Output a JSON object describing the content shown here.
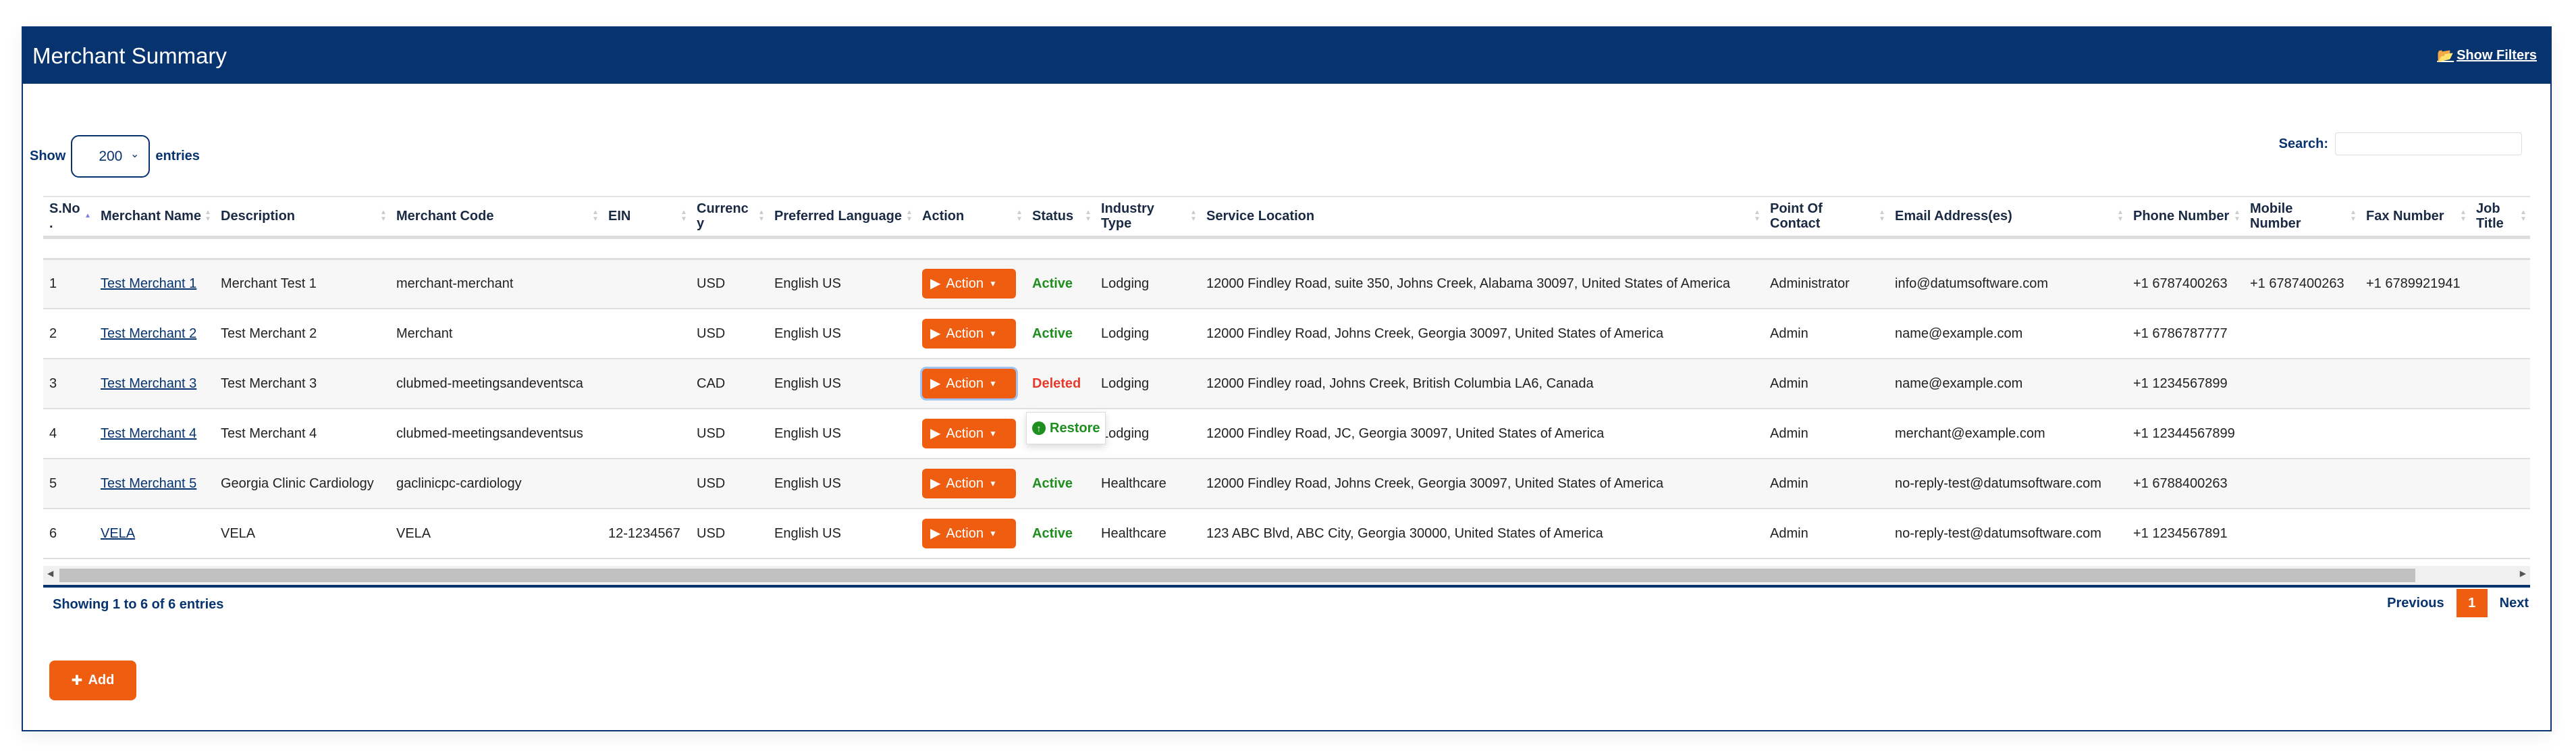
{
  "header": {
    "title": "Merchant Summary",
    "show_filters": "Show Filters",
    "filter_icon": "folder-open-icon"
  },
  "length": {
    "show": "Show",
    "value": "200",
    "entries": "entries"
  },
  "search": {
    "label": "Search:",
    "value": ""
  },
  "columns": [
    "S.No.",
    "Merchant Name",
    "Description",
    "Merchant Code",
    "EIN",
    "Currency",
    "Preferred Language",
    "Action",
    "Status",
    "Industry Type",
    "Service Location",
    "Point Of Contact",
    "Email Address(es)",
    "Phone Number",
    "Mobile Number",
    "Fax Number",
    "Job Title"
  ],
  "rows": [
    {
      "sno": "1",
      "name": "Test Merchant 1",
      "desc": "Merchant Test 1",
      "code": "merchant-merchant",
      "ein": "",
      "cur": "USD",
      "lang": "English US",
      "action": "Action",
      "status": "Active",
      "industry": "Lodging",
      "location": "12000 Findley Road, suite 350, Johns Creek, Alabama 30097, United States of America",
      "poc": "Administrator",
      "email": "info@datumsoftware.com",
      "phone": "+1 6787400263",
      "mobile": "+1 6787400263",
      "fax": "+1 6789921941",
      "job": ""
    },
    {
      "sno": "2",
      "name": "Test Merchant 2",
      "desc": "Test Merchant 2",
      "code": "Merchant",
      "ein": "",
      "cur": "USD",
      "lang": "English US",
      "action": "Action",
      "status": "Active",
      "industry": "Lodging",
      "location": "12000 Findley Road, Johns Creek, Georgia 30097, United States of America",
      "poc": "Admin",
      "email": "name@example.com",
      "phone": "+1 6786787777",
      "mobile": "",
      "fax": "",
      "job": ""
    },
    {
      "sno": "3",
      "name": "Test Merchant 3",
      "desc": "Test Merchant 3",
      "code": "clubmed-meetingsandeventsca",
      "ein": "",
      "cur": "CAD",
      "lang": "English US",
      "action": "Action",
      "status": "Deleted",
      "industry": "Lodging",
      "location": "12000 Findley road, Johns Creek, British Columbia LA6, Canada",
      "poc": "Admin",
      "email": "name@example.com",
      "phone": "+1 1234567899",
      "mobile": "",
      "fax": "",
      "job": ""
    },
    {
      "sno": "4",
      "name": "Test Merchant 4",
      "desc": "Test Merchant 4",
      "code": "clubmed-meetingsandeventsus",
      "ein": "",
      "cur": "USD",
      "lang": "English US",
      "action": "Action",
      "status": "",
      "industry": "Lodging",
      "location": "12000 Findley Road, JC, Georgia 30097, United States of America",
      "poc": "Admin",
      "email": "merchant@example.com",
      "phone": "+1 12344567899",
      "mobile": "",
      "fax": "",
      "job": ""
    },
    {
      "sno": "5",
      "name": "Test Merchant 5",
      "desc": "Georgia Clinic Cardiology",
      "code": "gaclinicpc-cardiology",
      "ein": "",
      "cur": "USD",
      "lang": "English US",
      "action": "Action",
      "status": "Active",
      "industry": "Healthcare",
      "location": "12000 Findley Road, Johns Creek, Georgia 30097, United States of America",
      "poc": "Admin",
      "email": "no-reply-test@datumsoftware.com",
      "phone": "+1 6788400263",
      "mobile": "",
      "fax": "",
      "job": ""
    },
    {
      "sno": "6",
      "name": "VELA",
      "desc": "VELA",
      "code": "VELA",
      "ein": "12-1234567",
      "cur": "USD",
      "lang": "English US",
      "action": "Action",
      "status": "Active",
      "industry": "Healthcare",
      "location": "123 ABC Blvd, ABC City, Georgia 30000, United States of America",
      "poc": "Admin",
      "email": "no-reply-test@datumsoftware.com",
      "phone": "+1 1234567891",
      "mobile": "",
      "fax": "",
      "job": ""
    }
  ],
  "menu": {
    "restore": "Restore"
  },
  "footer": {
    "info": "Showing 1 to 6 of 6 entries",
    "previous": "Previous",
    "page": "1",
    "next": "Next"
  },
  "add": "Add",
  "colors": {
    "brand": "#07346e",
    "accent": "#ef5d10",
    "active": "#1e8e1e",
    "deleted": "#e53b2c"
  }
}
